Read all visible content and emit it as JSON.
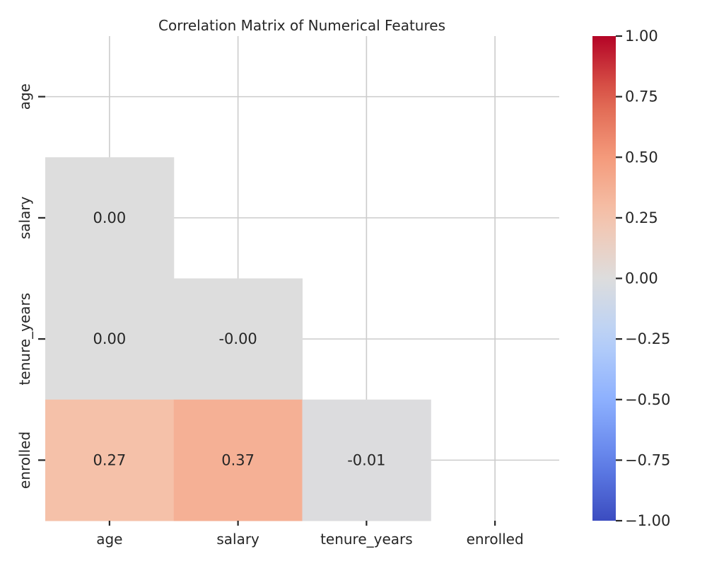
{
  "chart_data": {
    "type": "heatmap",
    "title": "Correlation Matrix of Numerical Features",
    "xlabel": "",
    "ylabel": "",
    "variables": [
      "age",
      "salary",
      "tenure_years",
      "enrolled"
    ],
    "mask": "upper-triangle-including-diagonal",
    "cells": [
      {
        "row": "salary",
        "col": "age",
        "value": 0.0,
        "label": "0.00"
      },
      {
        "row": "tenure_years",
        "col": "age",
        "value": 0.0,
        "label": "0.00"
      },
      {
        "row": "tenure_years",
        "col": "salary",
        "value": -0.0,
        "label": "-0.00"
      },
      {
        "row": "enrolled",
        "col": "age",
        "value": 0.27,
        "label": "0.27"
      },
      {
        "row": "enrolled",
        "col": "salary",
        "value": 0.37,
        "label": "0.37"
      },
      {
        "row": "enrolled",
        "col": "tenure_years",
        "value": -0.01,
        "label": "-0.01"
      }
    ],
    "colormap": "coolwarm",
    "colorbar": {
      "range": [
        -1.0,
        1.0
      ],
      "ticks": [
        "−1.00",
        "−0.75",
        "−0.50",
        "−0.25",
        "0.00",
        "0.25",
        "0.50",
        "0.75",
        "1.00"
      ],
      "tick_values": [
        -1.0,
        -0.75,
        -0.5,
        -0.25,
        0.0,
        0.25,
        0.5,
        0.75,
        1.0
      ]
    },
    "grid": true
  }
}
